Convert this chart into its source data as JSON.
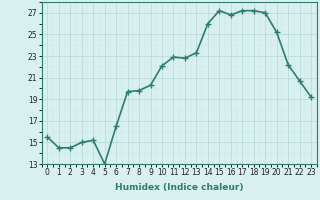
{
  "x": [
    0,
    1,
    2,
    3,
    4,
    5,
    6,
    7,
    8,
    9,
    10,
    11,
    12,
    13,
    14,
    15,
    16,
    17,
    18,
    19,
    20,
    21,
    22,
    23
  ],
  "y": [
    15.5,
    14.5,
    14.5,
    15.0,
    15.2,
    13.0,
    16.5,
    19.7,
    19.8,
    20.3,
    22.1,
    22.9,
    22.8,
    23.3,
    26.0,
    27.2,
    26.8,
    27.2,
    27.2,
    27.0,
    25.2,
    22.2,
    20.7,
    19.2
  ],
  "xlabel": "Humidex (Indice chaleur)",
  "ylabel": "",
  "xlim": [
    -0.5,
    23.5
  ],
  "ylim": [
    13,
    28
  ],
  "yticks": [
    13,
    15,
    17,
    19,
    21,
    23,
    25,
    27
  ],
  "xticks": [
    0,
    1,
    2,
    3,
    4,
    5,
    6,
    7,
    8,
    9,
    10,
    11,
    12,
    13,
    14,
    15,
    16,
    17,
    18,
    19,
    20,
    21,
    22,
    23
  ],
  "line_color": "#2e7d6e",
  "marker": "+",
  "marker_size": 4,
  "bg_color": "#d8f0f0",
  "grid_major_color": "#b8d8d8",
  "grid_minor_color": "#c8e8e8",
  "line_width": 1.2,
  "tick_fontsize": 5.5,
  "xlabel_fontsize": 6.5
}
